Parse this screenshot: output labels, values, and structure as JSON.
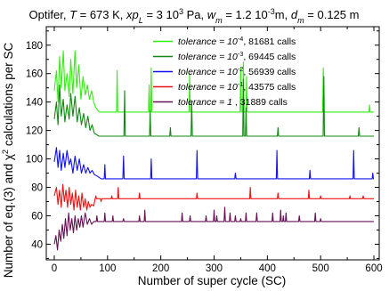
{
  "chart_data": {
    "type": "line",
    "title_parts": [
      {
        "text": "Optifer, ",
        "style": "normal"
      },
      {
        "text": "T",
        "style": "italic"
      },
      {
        "text": " = 673 K, ",
        "style": "normal"
      },
      {
        "text": "xp",
        "style": "italic"
      },
      {
        "text": "L",
        "style": "italic-sub"
      },
      {
        "text": " = 3 10",
        "style": "normal"
      },
      {
        "text": "3",
        "style": "sup"
      },
      {
        "text": " Pa, ",
        "style": "normal"
      },
      {
        "text": "w",
        "style": "italic"
      },
      {
        "text": "m",
        "style": "italic-sub"
      },
      {
        "text": " = 1.2 10",
        "style": "normal"
      },
      {
        "text": "-3",
        "style": "sup"
      },
      {
        "text": "m, ",
        "style": "normal"
      },
      {
        "text": "d",
        "style": "italic"
      },
      {
        "text": "m",
        "style": "italic-sub"
      },
      {
        "text": " = 0.125 m",
        "style": "normal"
      }
    ],
    "xlabel": "Number of super cycle (SC)",
    "ylabel_parts": [
      {
        "text": "Number of eq.(3) and ",
        "style": "normal"
      },
      {
        "text": "χ",
        "style": "normal"
      },
      {
        "text": "2",
        "style": "sup"
      },
      {
        "text": " calculations per SC",
        "style": "normal"
      }
    ],
    "xlim": [
      -15,
      610
    ],
    "ylim": [
      29,
      193
    ],
    "xticks": [
      0,
      100,
      200,
      300,
      400,
      500,
      600
    ],
    "yticks": [
      40,
      60,
      80,
      100,
      120,
      140,
      160,
      180
    ],
    "legend_position": "top-right",
    "series": [
      {
        "name": "tolerance = 10^-4, 81681 calls",
        "legend_parts": [
          {
            "text": "tolerance = 10",
            "style": "italic"
          },
          {
            "text": "-4",
            "style": "sup"
          },
          {
            "text": ", 81681 calls",
            "style": "normal"
          }
        ],
        "color": "#33ee11",
        "base": 133,
        "early": [
          [
            0,
            148
          ],
          [
            4,
            162
          ],
          [
            7,
            140
          ],
          [
            10,
            172
          ],
          [
            13,
            150
          ],
          [
            17,
            176
          ],
          [
            20,
            148
          ],
          [
            24,
            160
          ],
          [
            28,
            144
          ],
          [
            31,
            170
          ],
          [
            35,
            146
          ],
          [
            39,
            176
          ],
          [
            42,
            150
          ],
          [
            46,
            166
          ],
          [
            50,
            142
          ],
          [
            54,
            158
          ],
          [
            58,
            145
          ],
          [
            62,
            152
          ],
          [
            66,
            142
          ],
          [
            70,
            148
          ],
          [
            74,
            140
          ],
          [
            78,
            136
          ],
          [
            82,
            134
          ],
          [
            85,
            133
          ]
        ],
        "spikes": [
          [
            118,
            162
          ],
          [
            178,
            152
          ],
          [
            182,
            164
          ],
          [
            254,
            160
          ],
          [
            350,
            164
          ],
          [
            355,
            168
          ],
          [
            361,
            158
          ],
          [
            505,
            164
          ],
          [
            592,
            138
          ]
        ]
      },
      {
        "name": "tolerance = 10^-3, 69445 calls",
        "legend_parts": [
          {
            "text": "tolerance = 10",
            "style": "italic"
          },
          {
            "text": "-3",
            "style": "sup"
          },
          {
            "text": ", 69445 calls",
            "style": "normal"
          }
        ],
        "color": "#118811",
        "base": 116,
        "early": [
          [
            0,
            128
          ],
          [
            4,
            140
          ],
          [
            7,
            124
          ],
          [
            10,
            152
          ],
          [
            13,
            130
          ],
          [
            17,
            142
          ],
          [
            20,
            126
          ],
          [
            24,
            138
          ],
          [
            28,
            128
          ],
          [
            31,
            146
          ],
          [
            35,
            130
          ],
          [
            39,
            144
          ],
          [
            43,
            126
          ],
          [
            47,
            136
          ],
          [
            51,
            124
          ],
          [
            55,
            132
          ],
          [
            59,
            122
          ],
          [
            63,
            130
          ],
          [
            67,
            120
          ],
          [
            71,
            124
          ],
          [
            75,
            118
          ],
          [
            80,
            117
          ],
          [
            84,
            116
          ]
        ],
        "spikes": [
          [
            132,
            148
          ],
          [
            180,
            134
          ],
          [
            218,
            122
          ],
          [
            258,
            140
          ],
          [
            355,
            156
          ],
          [
            360,
            136
          ],
          [
            420,
            122
          ],
          [
            506,
            158
          ],
          [
            572,
            122
          ]
        ]
      },
      {
        "name": "tolerance = 10^-2, 56939 calls",
        "legend_parts": [
          {
            "text": "tolerance = 10",
            "style": "italic"
          },
          {
            "text": "-2",
            "style": "sup"
          },
          {
            "text": ", 56939 calls",
            "style": "normal"
          }
        ],
        "color": "#1111ee",
        "base": 86,
        "early": [
          [
            0,
            98
          ],
          [
            4,
            108
          ],
          [
            7,
            94
          ],
          [
            10,
            106
          ],
          [
            13,
            92
          ],
          [
            17,
            104
          ],
          [
            20,
            94
          ],
          [
            24,
            106
          ],
          [
            28,
            96
          ],
          [
            31,
            100
          ],
          [
            35,
            90
          ],
          [
            39,
            102
          ],
          [
            43,
            92
          ],
          [
            47,
            100
          ],
          [
            51,
            90
          ],
          [
            55,
            96
          ],
          [
            59,
            90
          ],
          [
            63,
            94
          ],
          [
            67,
            90
          ],
          [
            71,
            92
          ],
          [
            75,
            89
          ],
          [
            80,
            88
          ],
          [
            84,
            87
          ],
          [
            88,
            86
          ]
        ],
        "spikes": [
          [
            95,
            96
          ],
          [
            130,
            102
          ],
          [
            182,
            100
          ],
          [
            268,
            106
          ],
          [
            340,
            90
          ],
          [
            418,
            106
          ],
          [
            480,
            92
          ],
          [
            562,
            106
          ],
          [
            598,
            90
          ]
        ]
      },
      {
        "name": "tolerance = 10^-1, 43575 calls",
        "legend_parts": [
          {
            "text": "tolerance = 10",
            "style": "italic"
          },
          {
            "text": "-1",
            "style": "sup"
          },
          {
            "text": ", 43575 calls",
            "style": "normal"
          }
        ],
        "color": "#ee1111",
        "base": 72,
        "early": [
          [
            0,
            74
          ],
          [
            4,
            80
          ],
          [
            7,
            68
          ],
          [
            10,
            78
          ],
          [
            13,
            66
          ],
          [
            16,
            82
          ],
          [
            19,
            70
          ],
          [
            22,
            78
          ],
          [
            25,
            66
          ],
          [
            28,
            80
          ],
          [
            31,
            68
          ],
          [
            34,
            76
          ],
          [
            37,
            64
          ],
          [
            40,
            78
          ],
          [
            43,
            66
          ],
          [
            46,
            74
          ],
          [
            49,
            64
          ],
          [
            52,
            76
          ],
          [
            55,
            66
          ],
          [
            58,
            72
          ],
          [
            61,
            64
          ],
          [
            64,
            70
          ],
          [
            67,
            66
          ],
          [
            70,
            68
          ],
          [
            74,
            67
          ]
        ],
        "spikes": [
          [
            78,
            74
          ],
          [
            88,
            70
          ],
          [
            108,
            74
          ],
          [
            120,
            80
          ],
          [
            160,
            76
          ],
          [
            215,
            72
          ],
          [
            268,
            76
          ],
          [
            300,
            72
          ],
          [
            368,
            80
          ],
          [
            420,
            76
          ],
          [
            478,
            78
          ],
          [
            500,
            74
          ],
          [
            555,
            74
          ],
          [
            580,
            74
          ]
        ]
      },
      {
        "name": "tolerance = 1 , 31889 calls",
        "legend_parts": [
          {
            "text": "tolerance = 1",
            "style": "italic"
          },
          {
            "text": " , 31889 calls",
            "style": "normal"
          }
        ],
        "color": "#661155",
        "base": 56,
        "early": [
          [
            0,
            40
          ],
          [
            3,
            46
          ],
          [
            6,
            36
          ],
          [
            9,
            50
          ],
          [
            12,
            42
          ],
          [
            15,
            54
          ],
          [
            18,
            44
          ],
          [
            21,
            58
          ],
          [
            24,
            46
          ],
          [
            27,
            62
          ],
          [
            30,
            50
          ],
          [
            33,
            58
          ],
          [
            36,
            48
          ],
          [
            39,
            60
          ],
          [
            42,
            50
          ],
          [
            45,
            58
          ],
          [
            48,
            52
          ],
          [
            51,
            60
          ],
          [
            54,
            52
          ],
          [
            58,
            62
          ],
          [
            62,
            54
          ],
          [
            66,
            58
          ],
          [
            70,
            54
          ],
          [
            74,
            56
          ]
        ],
        "spikes": [
          [
            80,
            60
          ],
          [
            95,
            62
          ],
          [
            100,
            56
          ],
          [
            110,
            60
          ],
          [
            130,
            58
          ],
          [
            160,
            60
          ],
          [
            170,
            64
          ],
          [
            240,
            62
          ],
          [
            255,
            60
          ],
          [
            285,
            60
          ],
          [
            300,
            64
          ],
          [
            305,
            60
          ],
          [
            320,
            66
          ],
          [
            330,
            62
          ],
          [
            340,
            60
          ],
          [
            350,
            58
          ],
          [
            360,
            62
          ],
          [
            380,
            62
          ],
          [
            410,
            62
          ],
          [
            425,
            64
          ],
          [
            430,
            60
          ],
          [
            435,
            62
          ],
          [
            460,
            60
          ],
          [
            490,
            62
          ],
          [
            500,
            58
          ]
        ]
      }
    ]
  }
}
